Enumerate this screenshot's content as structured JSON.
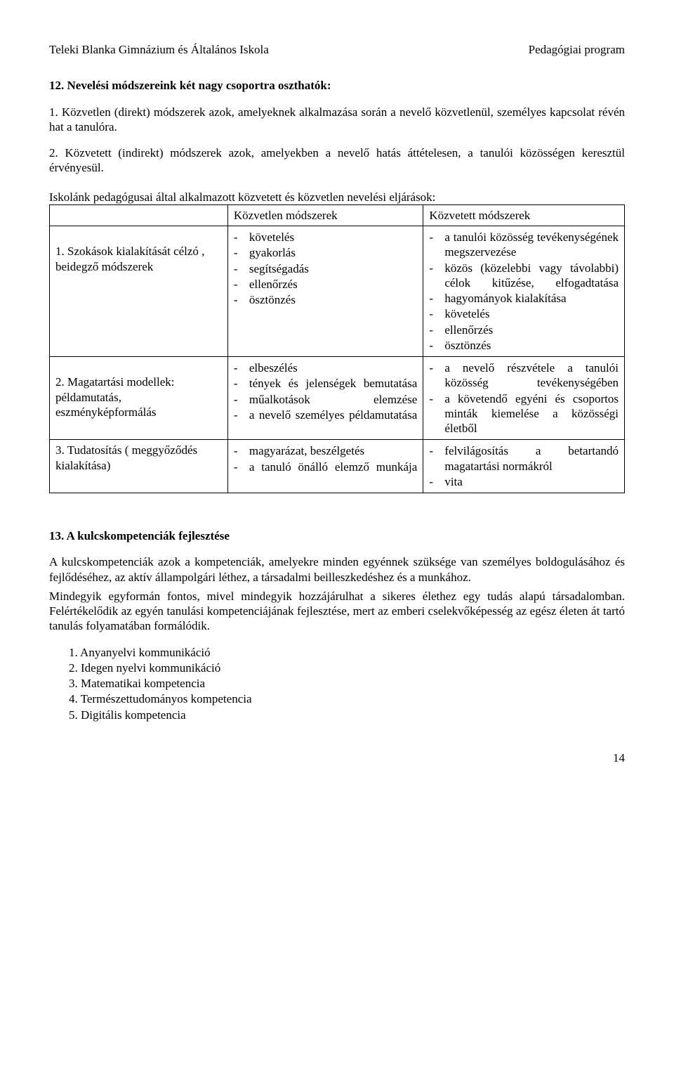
{
  "header": {
    "left": "Teleki Blanka Gimnázium és Általános Iskola",
    "right": "Pedagógiai program"
  },
  "section12": {
    "title": "12. Nevelési módszereink két nagy csoportra oszthatók:",
    "item1": "1. Közvetlen (direkt) módszerek azok, amelyeknek alkalmazása során a nevelő közvetlenül, személyes kapcsolat révén hat a tanulóra.",
    "item2": "2. Közvetett (indirekt) módszerek azok, amelyekben a nevelő hatás áttételesen, a tanulói közösségen keresztül érvényesül.",
    "tableIntro": "Iskolánk pedagógusai által alkalmazott közvetett és közvetlen nevelési eljárások:",
    "colEmpty": "",
    "colDirect": "Közvetlen módszerek",
    "colIndirect": "Közvetett módszerek",
    "row1": {
      "label": "1. Szokások kialakítását célzó , beidegző módszerek",
      "direct": [
        "követelés",
        "gyakorlás",
        "segítségadás",
        "ellenőrzés",
        "ösztönzés"
      ],
      "indirectJustified": [
        "a tanulói közösség tevékenységének megszervezése",
        "közös (közelebbi vagy távolabbi) célok kitűzése, elfogadtatása"
      ],
      "indirectPlain": [
        "hagyományok kialakítása",
        "követelés",
        "ellenőrzés",
        "ösztönzés"
      ]
    },
    "row2": {
      "label": "2.  Magatartási modellek: példamutatás, eszményképformálás",
      "direct_just": [
        "elbeszélés",
        "tények és jelenségek bemutatása",
        "műalkotások elemzése",
        "a nevelő személyes példamutatása"
      ],
      "indirect_just": [
        "a nevelő részvétele a tanulói közösség tevékenységében",
        "a követendő egyéni és csoportos minták kiemelése a közösségi életből"
      ]
    },
    "row3": {
      "label": "3. Tudatosítás ( meggyőződés kialakítása)",
      "direct_mixed": [
        {
          "text": "magyarázat, beszélgetés",
          "just": false
        },
        {
          "text": "a tanuló önálló elemző munkája",
          "just": true
        }
      ],
      "indirect_mixed": [
        {
          "text": "felvilágosítás a betartandó magatartási normákról",
          "just": false
        },
        {
          "text": "vita",
          "just": false
        }
      ]
    }
  },
  "section13": {
    "title": "13. A kulcskompetenciák fejlesztése",
    "para1": "A kulcskompetenciák azok a kompetenciák, amelyekre minden egyénnek szüksége van személyes boldogulásához és fejlődéséhez, az aktív állampolgári léthez, a társadalmi beilleszkedéshez és a munkához.",
    "para2": "Mindegyik egyformán fontos, mivel mindegyik hozzájárulhat a sikeres élethez egy tudás alapú társadalomban. Felértékelődik az egyén tanulási kompetenciájának fejlesztése, mert az emberi cselekvőképesség az egész életen át tartó tanulás folyamatában formálódik.",
    "list": [
      "1.  Anyanyelvi kommunikáció",
      "2.  Idegen nyelvi kommunikáció",
      "3.  Matematikai kompetencia",
      "4.  Természettudományos kompetencia",
      "5.  Digitális kompetencia"
    ]
  },
  "pageNumber": "14"
}
